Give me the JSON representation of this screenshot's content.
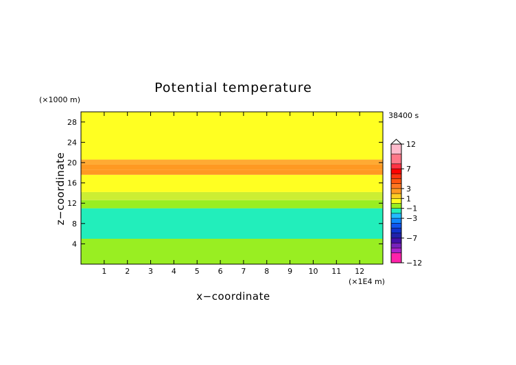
{
  "chart_data": {
    "type": "heatmap",
    "title": "Potential temperature",
    "xlabel": "x−coordinate",
    "ylabel": "z−coordinate",
    "x_unit": "(×1E4 m)",
    "y_unit": "(×1000 m)",
    "time_label": "38400 s",
    "xlim": [
      0,
      13
    ],
    "ylim": [
      0,
      30
    ],
    "x_ticks": [
      1,
      2,
      3,
      4,
      5,
      6,
      7,
      8,
      9,
      10,
      11,
      12
    ],
    "y_ticks": [
      4,
      8,
      12,
      16,
      20,
      24,
      28
    ],
    "bands": [
      {
        "z0": 0,
        "z1": 5,
        "color": "#99ee22"
      },
      {
        "z0": 5,
        "z1": 11,
        "color": "#22eebb"
      },
      {
        "z0": 11,
        "z1": 12.6,
        "color": "#99ee22"
      },
      {
        "z0": 12.6,
        "z1": 14.2,
        "color": "#ccee33"
      },
      {
        "z0": 14.2,
        "z1": 17.6,
        "color": "#ffff22"
      },
      {
        "z0": 17.6,
        "z1": 18.6,
        "color": "#ff9922"
      },
      {
        "z0": 18.6,
        "z1": 19.6,
        "color": "#ff9922"
      },
      {
        "z0": 19.6,
        "z1": 20.6,
        "color": "#ffaa33"
      },
      {
        "z0": 20.6,
        "z1": 30,
        "color": "#ffff22"
      }
    ],
    "colorbar": {
      "tick_labels": [
        "12",
        "7",
        "3",
        "1",
        "−1",
        "−3",
        "−7",
        "−12"
      ],
      "tick_values": [
        12,
        7,
        3,
        1,
        -1,
        -3,
        -7,
        -12
      ],
      "segments": [
        {
          "v0": 10,
          "v1": 12,
          "color": "#ffbbcc"
        },
        {
          "v0": 8,
          "v1": 10,
          "color": "#ff7788"
        },
        {
          "v0": 7,
          "v1": 8,
          "color": "#ff3344"
        },
        {
          "v0": 6,
          "v1": 7,
          "color": "#ff0000"
        },
        {
          "v0": 5,
          "v1": 6,
          "color": "#ff3311"
        },
        {
          "v0": 4,
          "v1": 5,
          "color": "#ff5511"
        },
        {
          "v0": 3,
          "v1": 4,
          "color": "#ff7722"
        },
        {
          "v0": 2,
          "v1": 3,
          "color": "#ff9922"
        },
        {
          "v0": 1,
          "v1": 2,
          "color": "#ffcc22"
        },
        {
          "v0": 0,
          "v1": 1,
          "color": "#ffff22"
        },
        {
          "v0": -1,
          "v1": 0,
          "color": "#99ee22"
        },
        {
          "v0": -2,
          "v1": -1,
          "color": "#22eebb"
        },
        {
          "v0": -3,
          "v1": -2,
          "color": "#22bbff"
        },
        {
          "v0": -4,
          "v1": -3,
          "color": "#1188ff"
        },
        {
          "v0": -5,
          "v1": -4,
          "color": "#1155ee"
        },
        {
          "v0": -6,
          "v1": -5,
          "color": "#1133cc"
        },
        {
          "v0": -7,
          "v1": -6,
          "color": "#2222aa"
        },
        {
          "v0": -8,
          "v1": -7,
          "color": "#4411aa"
        },
        {
          "v0": -9,
          "v1": -8,
          "color": "#7722bb"
        },
        {
          "v0": -10,
          "v1": -9,
          "color": "#aa22cc"
        },
        {
          "v0": -12,
          "v1": -10,
          "color": "#ff22aa"
        }
      ]
    }
  }
}
